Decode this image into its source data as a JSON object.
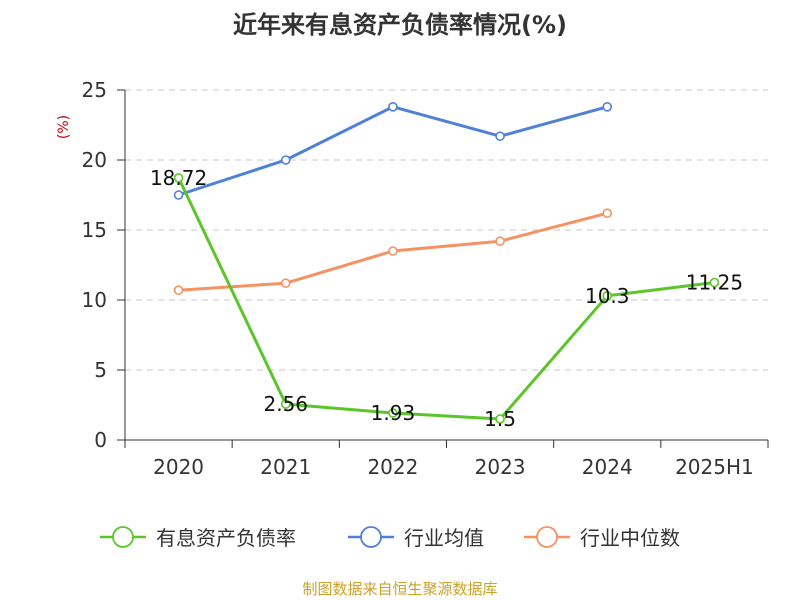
{
  "chart_data": {
    "type": "line",
    "title": "近年来有息资产负债率情况(%)",
    "ylabel": "(%)",
    "categories": [
      "2020",
      "2021",
      "2022",
      "2023",
      "2024",
      "2025H1"
    ],
    "ylim": [
      0,
      25
    ],
    "yticks": [
      0,
      5,
      10,
      15,
      20,
      25
    ],
    "grid": true,
    "legend_position": "bottom",
    "series": [
      {
        "name": "有息资产负债率",
        "color": "#5cc52a",
        "values": [
          18.72,
          2.56,
          1.93,
          1.5,
          10.3,
          11.25
        ],
        "labels": [
          "18.72",
          "2.56",
          "1.93",
          "1.5",
          "10.3",
          "11.25"
        ]
      },
      {
        "name": "行业均值",
        "color": "#4f81d6",
        "values": [
          17.5,
          20.0,
          23.8,
          21.7,
          23.8,
          null
        ]
      },
      {
        "name": "行业中位数",
        "color": "#f49262",
        "values": [
          10.7,
          11.2,
          13.5,
          14.2,
          16.2,
          null
        ]
      }
    ]
  },
  "source_text": "制图数据来自恒生聚源数据库",
  "colors": {
    "axis": "#333333",
    "grid": "#c8c8c8",
    "ylabel": "#cc0000",
    "source": "#c9a227"
  }
}
